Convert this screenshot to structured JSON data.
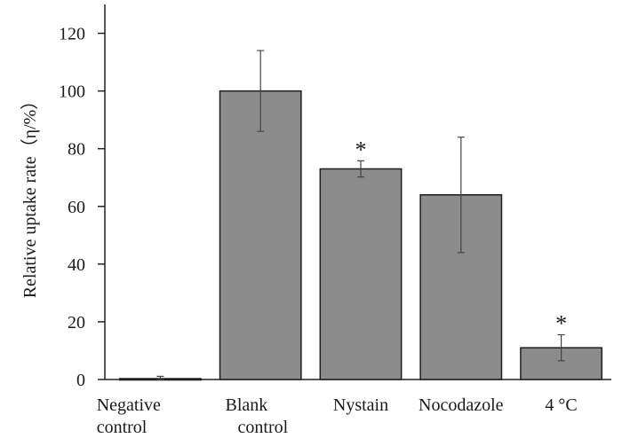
{
  "chart_data": {
    "type": "bar",
    "title": "",
    "xlabel": "",
    "ylabel": "Relative uptake rate（η/%）",
    "ylim": [
      0,
      130
    ],
    "yticks": [
      "0",
      "20",
      "40",
      "60",
      "80",
      "100",
      "120"
    ],
    "categories": [
      [
        "Negative",
        "control"
      ],
      [
        "Blank",
        "control"
      ],
      [
        "Nystain"
      ],
      [
        "Nocodazole"
      ],
      [
        "4 °C"
      ]
    ],
    "values": [
      0.3,
      100,
      73,
      64,
      11
    ],
    "errors": [
      0.8,
      14,
      2.8,
      20,
      4.5
    ],
    "significance": [
      "",
      "",
      "*",
      "",
      "*"
    ],
    "bar_color": "#8c8c8c",
    "grid": false,
    "legend": "none"
  }
}
